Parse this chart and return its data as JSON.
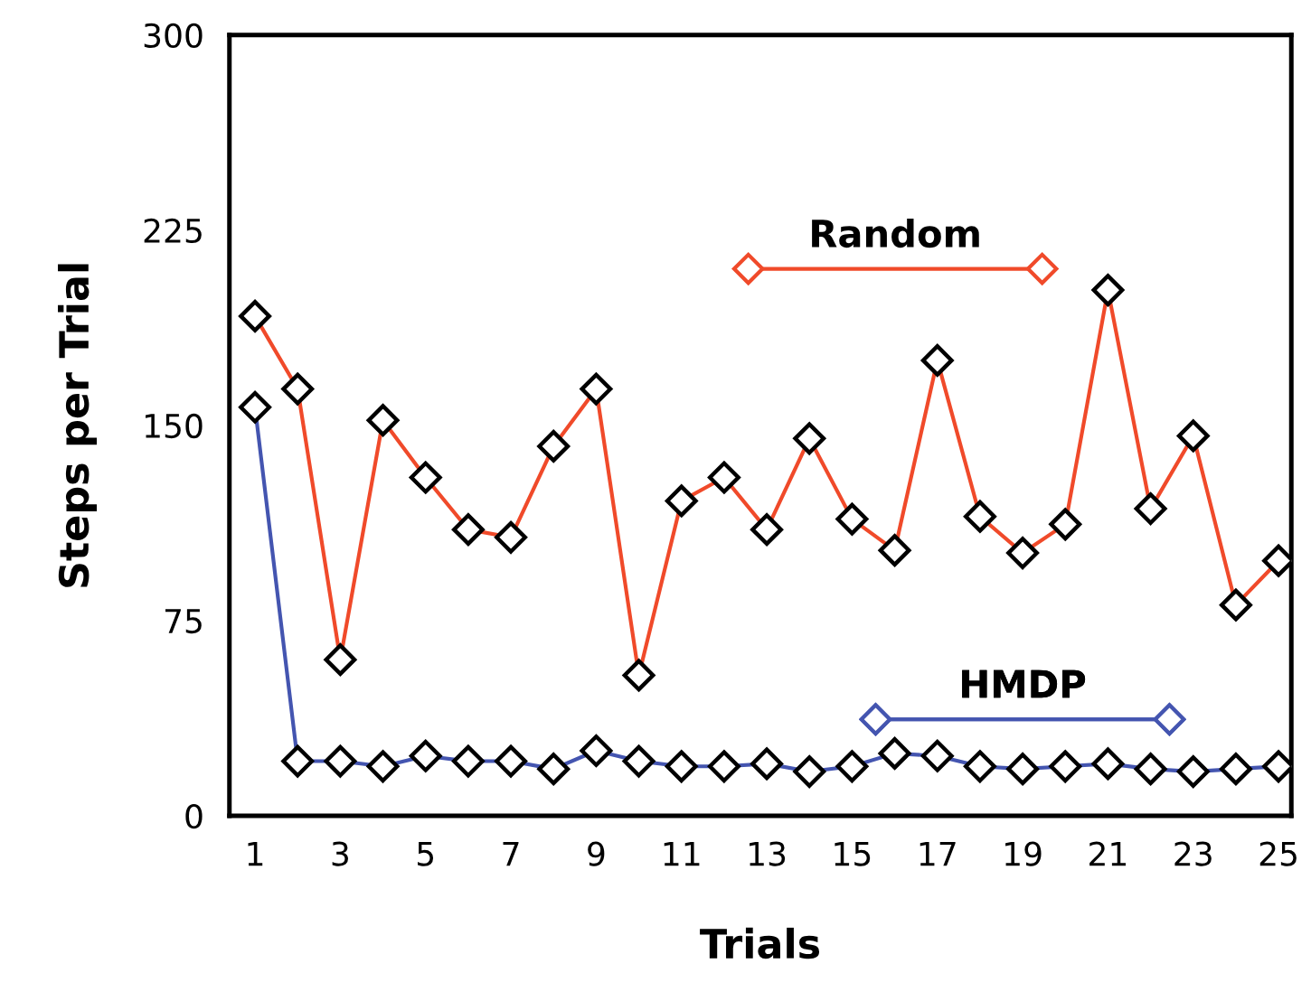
{
  "chart_data": {
    "type": "line",
    "xlabel": "Trials",
    "ylabel": "Steps per Trial",
    "x": [
      1,
      2,
      3,
      4,
      5,
      6,
      7,
      8,
      9,
      10,
      11,
      12,
      13,
      14,
      15,
      16,
      17,
      18,
      19,
      20,
      21,
      22,
      23,
      24,
      25
    ],
    "series": [
      {
        "name": "Random",
        "color": "#f04a2a",
        "values": [
          192,
          164,
          60,
          152,
          130,
          110,
          107,
          142,
          164,
          54,
          121,
          130,
          110,
          145,
          114,
          102,
          175,
          115,
          101,
          112,
          202,
          118,
          146,
          81,
          98
        ]
      },
      {
        "name": "HMDP",
        "color": "#4455b0",
        "values": [
          157,
          21,
          21,
          19,
          23,
          21,
          21,
          18,
          25,
          21,
          19,
          19,
          20,
          17,
          19,
          24,
          23,
          19,
          18,
          19,
          20,
          18,
          17,
          18,
          19
        ]
      }
    ],
    "xlim": [
      0.4,
      25.3
    ],
    "xticks": [
      1,
      3,
      5,
      7,
      9,
      11,
      13,
      15,
      17,
      19,
      21,
      23,
      25
    ],
    "ylim": [
      0,
      300
    ],
    "yticks": [
      0,
      75,
      150,
      225,
      300
    ],
    "marker": "diamond",
    "line_style": "solid",
    "grid": false,
    "legend": "right"
  }
}
